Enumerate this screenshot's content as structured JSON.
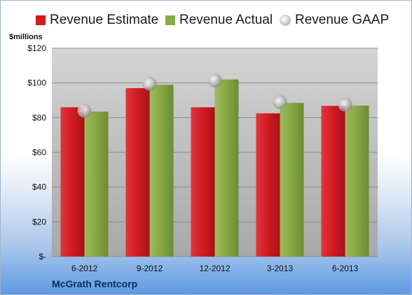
{
  "chart_data": {
    "type": "bar",
    "unit_label": "$millions",
    "categories": [
      "6-2012",
      "9-2012",
      "12-2012",
      "3-2013",
      "6-2013"
    ],
    "series": [
      {
        "name": "Revenue Estimate",
        "color": "#d21a22",
        "values": [
          86,
          97,
          86,
          82.5,
          86.8
        ]
      },
      {
        "name": "Revenue Actual",
        "color": "#8aab48",
        "values": [
          83.5,
          99,
          102,
          88.5,
          87
        ]
      },
      {
        "name": "Revenue GAAP",
        "marker": "circle",
        "values": [
          84,
          99.5,
          101.5,
          89,
          87.5
        ]
      }
    ],
    "yticks": [
      0,
      20,
      40,
      60,
      80,
      100,
      120
    ],
    "ytick_labels": [
      "$-",
      "$20",
      "$40",
      "$60",
      "$80",
      "$100",
      "$120"
    ],
    "ylim": [
      0,
      120
    ],
    "grid": true,
    "legend_position": "top"
  },
  "company": "McGrath Rentcorp"
}
